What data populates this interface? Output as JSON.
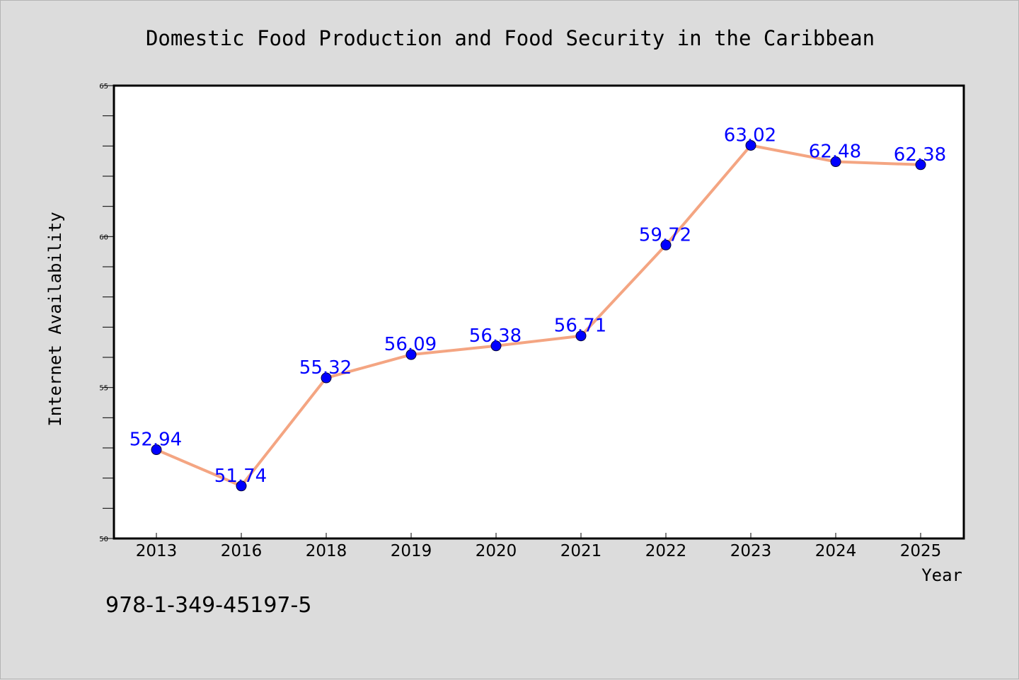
{
  "chart_data": {
    "type": "line",
    "title": "Domestic Food Production and Food Security in the Caribbean",
    "xlabel": "Year",
    "ylabel": "Internet Availability",
    "categories": [
      "2013",
      "2016",
      "2018",
      "2019",
      "2020",
      "2021",
      "2022",
      "2023",
      "2024",
      "2025"
    ],
    "values": [
      52.94,
      51.74,
      55.32,
      56.09,
      56.38,
      56.71,
      59.72,
      63.02,
      62.48,
      62.38
    ],
    "data_labels": [
      "52.94",
      "51.74",
      "55.32",
      "56.09",
      "56.38",
      "56.71",
      "59.72",
      "63.02",
      "62.48",
      "62.38"
    ],
    "ylim": [
      50,
      65
    ],
    "yticks": [
      50,
      55,
      60,
      65
    ],
    "grid": false,
    "legend": "none",
    "line_color": "#f4a582",
    "marker_color": "#0000ff",
    "label_color": "#0000ff"
  },
  "footer": {
    "isbn": "978-1-349-45197-5"
  }
}
